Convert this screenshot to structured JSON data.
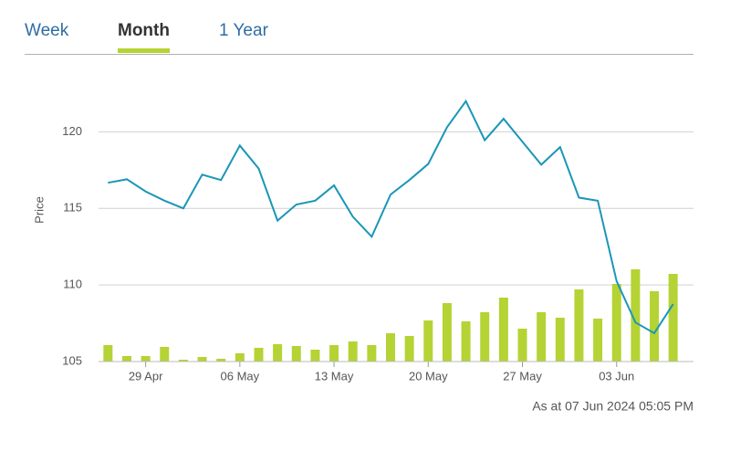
{
  "tabs": [
    "Week",
    "Month",
    "1 Year"
  ],
  "selected_tab": 1,
  "chart_data": {
    "type": "line",
    "ylabel": "Price",
    "categories": [
      null,
      null,
      "29 Apr",
      null,
      null,
      null,
      null,
      "06 May",
      null,
      null,
      null,
      null,
      "13 May",
      null,
      null,
      null,
      null,
      "20 May",
      null,
      null,
      null,
      null,
      "27 May",
      null,
      null,
      null,
      null,
      "03 Jun",
      null,
      null,
      null
    ],
    "series": [
      {
        "color": "#1a96b8",
        "values": [
          116.67,
          116.9,
          116.1,
          115.5,
          115.0,
          117.2,
          116.85,
          119.1,
          117.6,
          114.2,
          115.25,
          115.5,
          116.5,
          114.45,
          113.15,
          115.9,
          116.85,
          117.9,
          120.3,
          122.0,
          119.45,
          120.85,
          119.35,
          117.85,
          119.0,
          115.7,
          115.5,
          110.25,
          107.55,
          106.85,
          108.75
        ]
      },
      {
        "color": "#b5d334",
        "type": "bar",
        "axis": "y2",
        "values": [
          18,
          6,
          6,
          16,
          2,
          5,
          3,
          9,
          15,
          19,
          17,
          13,
          18,
          22,
          18,
          31,
          28,
          45,
          64,
          44,
          54,
          70,
          36,
          54,
          48,
          79,
          47,
          85,
          101,
          77,
          96
        ]
      }
    ],
    "ylim": [
      105,
      123
    ],
    "yticks": [
      105,
      110,
      115,
      120
    ],
    "y2lim": [
      0,
      302
    ],
    "grid": true,
    "footnote": "As at 07 Jun 2024 05:05 PM"
  }
}
